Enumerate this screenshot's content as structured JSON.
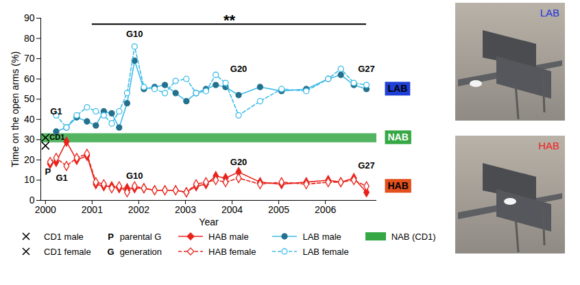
{
  "chart_data": {
    "type": "line",
    "xlabel": "Year",
    "ylabel": "Time on the open arms (%)",
    "xlim": [
      1999.9,
      2007.1
    ],
    "xticks": [
      2000,
      2001,
      2002,
      2003,
      2004,
      2005,
      2006
    ],
    "ylim": [
      0,
      90
    ],
    "yticks": [
      0,
      10,
      20,
      30,
      40,
      50,
      60,
      70,
      80,
      90
    ],
    "grid": false,
    "legend": "bottom",
    "series": [
      {
        "name": "HAB male",
        "color": "#e8231c",
        "marker": "diamond",
        "line_style": "solid",
        "x": [
          2000.1,
          2000.23,
          2000.45,
          2000.67,
          2000.89,
          2001.08,
          2001.25,
          2001.42,
          2001.58,
          2001.75,
          2001.91,
          2002.11,
          2002.34,
          2002.56,
          2002.79,
          2003.02,
          2003.23,
          2003.44,
          2003.65,
          2003.86,
          2004.14,
          2004.6,
          2005.06,
          2005.59,
          2006.06,
          2006.33,
          2006.61,
          2006.88
        ],
        "values": [
          18,
          19,
          29,
          20,
          22,
          8,
          7,
          7,
          6,
          6,
          6,
          6,
          5,
          5,
          5,
          4,
          7,
          8,
          12,
          11,
          14,
          9,
          8,
          9,
          10,
          9,
          11,
          4
        ]
      },
      {
        "name": "HAB female",
        "color": "#e8231c",
        "marker": "diamond-open",
        "line_style": "dashed",
        "x": [
          2000.1,
          2000.23,
          2000.45,
          2000.67,
          2000.89,
          2001.08,
          2001.25,
          2001.42,
          2001.58,
          2001.75,
          2001.91,
          2002.11,
          2002.34,
          2002.56,
          2002.79,
          2003.02,
          2003.23,
          2003.44,
          2003.65,
          2003.86,
          2004.14,
          2004.6,
          2005.06,
          2005.59,
          2006.06,
          2006.33,
          2006.61,
          2006.88
        ],
        "values": [
          19,
          21,
          17,
          21,
          23,
          9,
          8,
          6,
          7,
          4,
          7,
          6,
          5,
          5,
          5,
          4,
          8,
          9,
          10,
          9,
          11,
          8,
          9,
          8,
          9,
          9,
          10,
          7
        ]
      },
      {
        "name": "LAB male",
        "color": "#3bbbe8",
        "marker": "circle",
        "line_style": "solid",
        "x": [
          2000.23,
          2000.45,
          2000.67,
          2000.89,
          2001.08,
          2001.25,
          2001.42,
          2001.58,
          2001.75,
          2001.91,
          2002.11,
          2002.34,
          2002.56,
          2002.79,
          2003.02,
          2003.23,
          2003.44,
          2003.65,
          2003.86,
          2004.14,
          2004.6,
          2005.06,
          2005.59,
          2006.06,
          2006.33,
          2006.61,
          2006.88
        ],
        "values": [
          34,
          36,
          41,
          39,
          37,
          44,
          43,
          36,
          48,
          69,
          55,
          56,
          57,
          53,
          49,
          53,
          55,
          57,
          56,
          52,
          56,
          54,
          55,
          60,
          62,
          57,
          55
        ]
      },
      {
        "name": "LAB female",
        "color": "#3bbbe8",
        "marker": "circle-open",
        "line_style": "dashed",
        "x": [
          2000.23,
          2000.45,
          2000.67,
          2000.89,
          2001.08,
          2001.25,
          2001.42,
          2001.58,
          2001.75,
          2001.91,
          2002.11,
          2002.34,
          2002.56,
          2002.79,
          2003.02,
          2003.23,
          2003.44,
          2003.65,
          2003.86,
          2004.14,
          2004.6,
          2005.06,
          2005.59,
          2006.06,
          2006.33,
          2006.61,
          2006.88
        ],
        "values": [
          42,
          36,
          42,
          46,
          44,
          42,
          38,
          44,
          53,
          76,
          56,
          55,
          53,
          59,
          60,
          53,
          54,
          62,
          58,
          42,
          49,
          55,
          54,
          60,
          65,
          58,
          57
        ]
      },
      {
        "name": "CD1 male",
        "type": "scatter",
        "color": "#000000",
        "marker": "times",
        "x": [
          2000
        ],
        "values": [
          31
        ]
      },
      {
        "name": "CD1 female",
        "type": "scatter",
        "color": "#000000",
        "marker": "times",
        "x": [
          2000
        ],
        "values": [
          27
        ]
      }
    ],
    "band": {
      "name": "NAB (CD1)",
      "y": [
        28.5,
        33
      ],
      "color": "#35a845"
    },
    "significance": {
      "label": "**",
      "x": [
        2001,
        2006.88
      ],
      "y": 87
    },
    "annotations": [
      {
        "text": "G1",
        "x": 2000.23,
        "y": 44
      },
      {
        "text": "G1",
        "x": 2000.35,
        "y": 11
      },
      {
        "text": "P",
        "x": 2000.05,
        "y": 14
      },
      {
        "text": "CD1",
        "x": 2000.25,
        "y": 31
      },
      {
        "text": "G10",
        "x": 2001.91,
        "y": 82
      },
      {
        "text": "G10",
        "x": 2001.91,
        "y": 12
      },
      {
        "text": "G20",
        "x": 2004.14,
        "y": 65
      },
      {
        "text": "G20",
        "x": 2004.14,
        "y": 19
      },
      {
        "text": "G27",
        "x": 2006.88,
        "y": 65
      },
      {
        "text": "G27",
        "x": 2006.88,
        "y": 17
      }
    ],
    "side_labels": [
      {
        "text": "LAB",
        "y": 55,
        "color": "#1f3fd6"
      },
      {
        "text": "NAB",
        "y": 31,
        "color": "#35a845"
      },
      {
        "text": "HAB",
        "y": 7,
        "color": "#e2501e"
      }
    ],
    "legend_notes": [
      {
        "symbol": "P",
        "text": "parental G"
      },
      {
        "symbol": "G",
        "text": "generation"
      }
    ],
    "photos": [
      {
        "label": "LAB",
        "color": "#2233dd"
      },
      {
        "label": "HAB",
        "color": "#ee2222"
      }
    ]
  }
}
